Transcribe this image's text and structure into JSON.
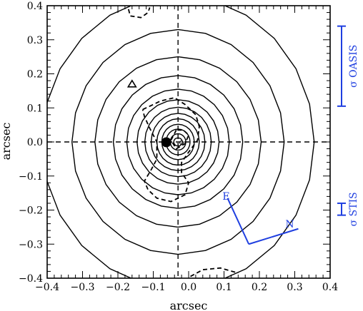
{
  "chart_data": {
    "type": "contour",
    "xlabel": "arcsec",
    "ylabel": "arcsec",
    "xlim": [
      -0.4,
      0.4
    ],
    "ylim": [
      -0.4,
      0.4
    ],
    "xticks": [
      -0.4,
      -0.3,
      -0.2,
      -0.1,
      0.0,
      0.1,
      0.2,
      0.3,
      0.4
    ],
    "yticks": [
      -0.4,
      -0.3,
      -0.2,
      -0.1,
      0.0,
      0.1,
      0.2,
      0.3,
      0.4
    ],
    "xtick_labels": [
      "−0.4",
      "−0.3",
      "−0.2",
      "−0.1",
      "0.0",
      "0.1",
      "0.2",
      "0.3",
      "0.4"
    ],
    "ytick_labels": [
      "−0.4",
      "−0.3",
      "−0.2",
      "−0.1",
      "0.0",
      "0.1",
      "0.2",
      "0.3",
      "0.4"
    ],
    "contour_center": [
      -0.03,
      0.0
    ],
    "contours_solid": [
      {
        "rx": 0.012,
        "ry": 0.012
      },
      {
        "rx": 0.022,
        "ry": 0.024
      },
      {
        "rx": 0.034,
        "ry": 0.038
      },
      {
        "rx": 0.046,
        "ry": 0.052
      },
      {
        "rx": 0.06,
        "ry": 0.068
      },
      {
        "rx": 0.076,
        "ry": 0.084
      },
      {
        "rx": 0.094,
        "ry": 0.102
      },
      {
        "rx": 0.116,
        "ry": 0.124
      },
      {
        "rx": 0.145,
        "ry": 0.155
      },
      {
        "rx": 0.183,
        "ry": 0.195
      },
      {
        "rx": 0.235,
        "ry": 0.25
      },
      {
        "rx": 0.3,
        "ry": 0.33
      },
      {
        "rx": 0.385,
        "ry": 0.43
      }
    ],
    "dashed_paths": [
      [
        [
          -0.13,
          0.095
        ],
        [
          -0.08,
          0.12
        ],
        [
          -0.04,
          0.13
        ],
        [
          -0.01,
          0.11
        ],
        [
          0.02,
          0.08
        ],
        [
          0.03,
          0.045
        ],
        [
          0.025,
          0.005
        ],
        [
          0.0,
          -0.03
        ],
        [
          -0.02,
          -0.06
        ],
        [
          -0.02,
          -0.09
        ],
        [
          -0.0,
          -0.12
        ],
        [
          -0.01,
          -0.155
        ],
        [
          -0.05,
          -0.175
        ],
        [
          -0.09,
          -0.165
        ],
        [
          -0.115,
          -0.14
        ],
        [
          -0.125,
          -0.115
        ],
        [
          -0.105,
          -0.08
        ],
        [
          -0.09,
          -0.05
        ],
        [
          -0.09,
          0.0
        ],
        [
          -0.11,
          0.04
        ],
        [
          -0.125,
          0.075
        ],
        [
          -0.13,
          0.095
        ]
      ],
      [
        [
          -0.035,
          0.035
        ],
        [
          -0.05,
          0.005
        ],
        [
          -0.035,
          -0.02
        ],
        [
          -0.01,
          -0.005
        ],
        [
          0.0,
          0.02
        ],
        [
          -0.015,
          0.035
        ],
        [
          -0.035,
          0.035
        ]
      ],
      [
        [
          -0.17,
          0.39
        ],
        [
          -0.165,
          0.37
        ],
        [
          -0.135,
          0.365
        ],
        [
          -0.115,
          0.38
        ],
        [
          -0.11,
          0.395
        ]
      ],
      [
        [
          0.005,
          -0.395
        ],
        [
          0.04,
          -0.375
        ],
        [
          0.09,
          -0.37
        ],
        [
          0.14,
          -0.385
        ]
      ]
    ],
    "dashed_axes": {
      "x": -0.03,
      "y": 0.0
    },
    "filled_circle": {
      "x": -0.063,
      "y": -0.001
    },
    "small_circle": {
      "x": -0.02,
      "y": -0.002
    },
    "triangle": {
      "x": -0.16,
      "y": 0.17
    },
    "compass": {
      "origin": [
        0.17,
        -0.3
      ],
      "east_end": [
        0.11,
        -0.165
      ],
      "north_end": [
        0.31,
        -0.255
      ],
      "east_label": "E",
      "north_label": "N"
    },
    "resolution_bars": [
      {
        "label": "σ OASIS",
        "y_low": 0.105,
        "y_high": 0.34
      },
      {
        "label": "σ STIS",
        "y_low": -0.215,
        "y_high": -0.18
      }
    ],
    "colors": {
      "line": "#000000",
      "annotation": "#1f3fe0",
      "background": "#ffffff"
    }
  }
}
